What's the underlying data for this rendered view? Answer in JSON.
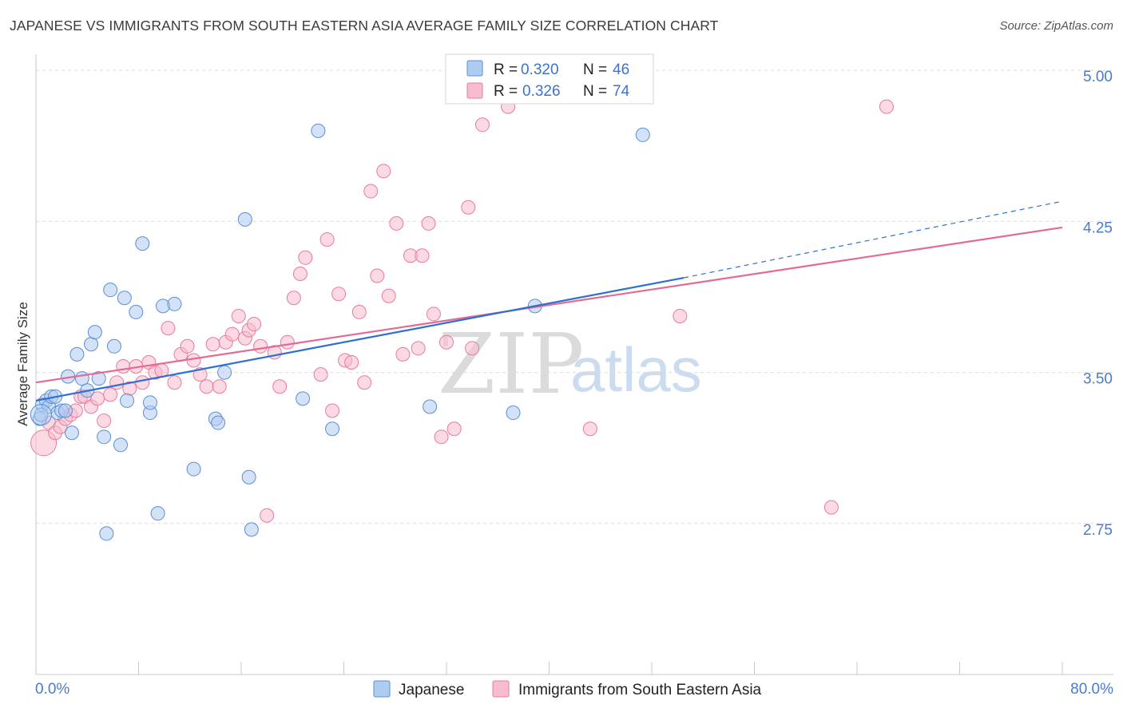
{
  "header": {
    "title": "JAPANESE VS IMMIGRANTS FROM SOUTH EASTERN ASIA AVERAGE FAMILY SIZE CORRELATION CHART",
    "source": "Source: ZipAtlas.com"
  },
  "watermark": {
    "zip": "ZIP",
    "atlas": "atlas"
  },
  "colors": {
    "blue_fill": "#aecbf0",
    "blue_stroke": "#5b8fd6",
    "blue_line": "#2e6fd0",
    "pink_fill": "#f7bccd",
    "pink_stroke": "#e77b9c",
    "pink_line": "#e26b95",
    "grid": "#dcdcdc",
    "axis_text": "#4a7cc9"
  },
  "legend": {
    "rows": [
      {
        "r_label": "R =",
        "r_value": "0.320",
        "n_label": "N =",
        "n_value": "46"
      },
      {
        "r_label": "R =",
        "r_value": "0.326",
        "n_label": "N =",
        "n_value": "74"
      }
    ]
  },
  "bottom_legend": [
    "Japanese",
    "Immigrants from South Eastern Asia"
  ],
  "chart_data": {
    "type": "scatter",
    "title": "JAPANESE VS IMMIGRANTS FROM SOUTH EASTERN ASIA AVERAGE FAMILY SIZE CORRELATION CHART",
    "xlabel": "",
    "ylabel": "Average Family Size",
    "xlim": [
      0,
      80
    ],
    "ylim": [
      2.0,
      5.08
    ],
    "x_tick_labels": [
      "0.0%",
      "80.0%"
    ],
    "y_ticks": [
      2.75,
      3.5,
      4.25,
      5.0
    ],
    "y_tick_labels": [
      "2.75",
      "3.50",
      "4.25",
      "5.00"
    ],
    "grid": true,
    "legend_position": "top-center",
    "series": [
      {
        "name": "Japanese",
        "stats": {
          "R": 0.32,
          "N": 46
        },
        "trend": {
          "x0": 0,
          "y0": 3.36,
          "x1": 50.5,
          "y1": 3.97,
          "dashed_to_x": 80,
          "dashed_to_y": 4.35
        },
        "points": [
          [
            0.3,
            3.27
          ],
          [
            0.5,
            3.34
          ],
          [
            0.8,
            3.36
          ],
          [
            1.0,
            3.33
          ],
          [
            1.2,
            3.38
          ],
          [
            1.5,
            3.38
          ],
          [
            1.7,
            3.3
          ],
          [
            2.0,
            3.31
          ],
          [
            2.3,
            3.31
          ],
          [
            2.5,
            3.48
          ],
          [
            2.8,
            3.2
          ],
          [
            3.2,
            3.59
          ],
          [
            3.6,
            3.47
          ],
          [
            4.0,
            3.41
          ],
          [
            4.3,
            3.64
          ],
          [
            4.6,
            3.7
          ],
          [
            4.9,
            3.47
          ],
          [
            5.3,
            3.18
          ],
          [
            5.5,
            2.7
          ],
          [
            5.8,
            3.91
          ],
          [
            6.1,
            3.63
          ],
          [
            6.6,
            3.14
          ],
          [
            6.9,
            3.87
          ],
          [
            7.1,
            3.36
          ],
          [
            7.8,
            3.8
          ],
          [
            8.3,
            4.14
          ],
          [
            8.9,
            3.3
          ],
          [
            8.9,
            3.35
          ],
          [
            9.5,
            2.8
          ],
          [
            9.9,
            3.83
          ],
          [
            10.8,
            3.84
          ],
          [
            12.3,
            3.02
          ],
          [
            14.0,
            3.27
          ],
          [
            14.2,
            3.25
          ],
          [
            14.7,
            3.5
          ],
          [
            16.3,
            4.26
          ],
          [
            16.6,
            2.98
          ],
          [
            16.8,
            2.72
          ],
          [
            20.8,
            3.37
          ],
          [
            22.0,
            4.7
          ],
          [
            23.1,
            3.22
          ],
          [
            30.7,
            3.33
          ],
          [
            37.2,
            3.3
          ],
          [
            38.9,
            3.83
          ],
          [
            47.3,
            4.68
          ],
          [
            0.4,
            3.29
          ]
        ]
      },
      {
        "name": "Immigrants from South Eastern Asia",
        "stats": {
          "R": 0.326,
          "N": 74
        },
        "trend": {
          "x0": 0,
          "y0": 3.45,
          "x1": 80,
          "y1": 4.22
        },
        "points": [
          [
            0.6,
            3.15
          ],
          [
            1.0,
            3.25
          ],
          [
            1.5,
            3.2
          ],
          [
            1.9,
            3.23
          ],
          [
            2.3,
            3.27
          ],
          [
            2.7,
            3.29
          ],
          [
            3.1,
            3.31
          ],
          [
            3.5,
            3.38
          ],
          [
            3.8,
            3.38
          ],
          [
            4.3,
            3.33
          ],
          [
            4.8,
            3.37
          ],
          [
            5.3,
            3.26
          ],
          [
            5.8,
            3.39
          ],
          [
            6.3,
            3.45
          ],
          [
            6.8,
            3.53
          ],
          [
            7.3,
            3.42
          ],
          [
            7.8,
            3.53
          ],
          [
            8.3,
            3.45
          ],
          [
            8.8,
            3.55
          ],
          [
            9.3,
            3.5
          ],
          [
            9.8,
            3.51
          ],
          [
            10.3,
            3.72
          ],
          [
            10.8,
            3.45
          ],
          [
            11.3,
            3.59
          ],
          [
            11.8,
            3.63
          ],
          [
            12.3,
            3.56
          ],
          [
            12.8,
            3.49
          ],
          [
            13.3,
            3.43
          ],
          [
            13.8,
            3.64
          ],
          [
            14.3,
            3.43
          ],
          [
            14.8,
            3.65
          ],
          [
            15.3,
            3.69
          ],
          [
            15.8,
            3.78
          ],
          [
            16.3,
            3.67
          ],
          [
            16.6,
            3.71
          ],
          [
            17.0,
            3.74
          ],
          [
            17.5,
            3.63
          ],
          [
            18.0,
            2.79
          ],
          [
            18.6,
            3.6
          ],
          [
            19.0,
            3.43
          ],
          [
            19.6,
            3.65
          ],
          [
            20.1,
            3.87
          ],
          [
            20.6,
            3.99
          ],
          [
            21.0,
            4.07
          ],
          [
            22.2,
            3.49
          ],
          [
            22.7,
            4.16
          ],
          [
            23.1,
            3.31
          ],
          [
            23.6,
            3.89
          ],
          [
            24.1,
            3.56
          ],
          [
            24.6,
            3.55
          ],
          [
            25.2,
            3.8
          ],
          [
            25.6,
            3.45
          ],
          [
            26.1,
            4.4
          ],
          [
            26.6,
            3.98
          ],
          [
            27.1,
            4.5
          ],
          [
            27.5,
            3.88
          ],
          [
            28.1,
            4.24
          ],
          [
            28.6,
            3.59
          ],
          [
            29.2,
            4.08
          ],
          [
            29.8,
            3.62
          ],
          [
            30.1,
            4.08
          ],
          [
            30.6,
            4.24
          ],
          [
            31.0,
            3.79
          ],
          [
            31.6,
            3.18
          ],
          [
            32.0,
            3.65
          ],
          [
            32.6,
            3.22
          ],
          [
            33.7,
            4.32
          ],
          [
            34.0,
            3.62
          ],
          [
            34.8,
            4.73
          ],
          [
            36.8,
            4.82
          ],
          [
            43.2,
            3.22
          ],
          [
            50.2,
            3.78
          ],
          [
            62.0,
            2.83
          ],
          [
            66.3,
            4.82
          ]
        ]
      }
    ]
  }
}
